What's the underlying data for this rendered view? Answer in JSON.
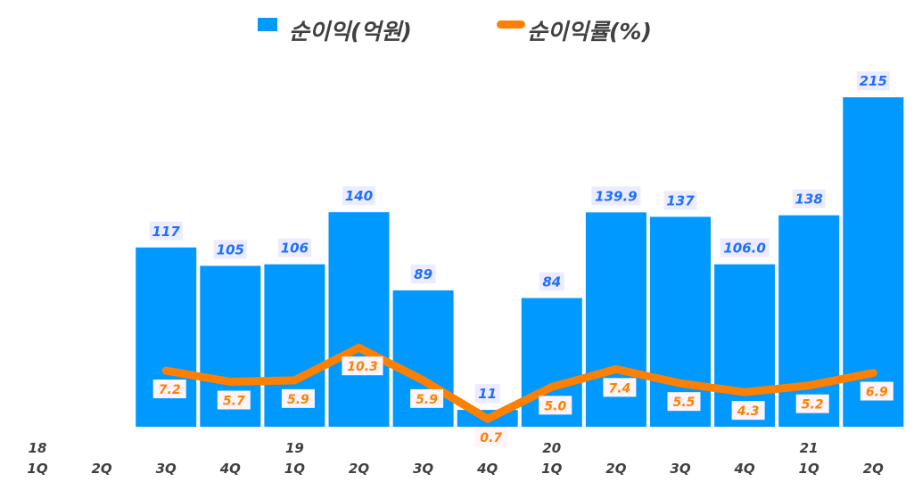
{
  "chart_data": {
    "type": "bar+line",
    "categories": [
      "1Q",
      "2Q",
      "3Q",
      "4Q",
      "1Q",
      "2Q",
      "3Q",
      "4Q",
      "1Q",
      "2Q",
      "3Q",
      "4Q",
      "1Q",
      "2Q"
    ],
    "year_labels": [
      {
        "index": 0,
        "label": "18"
      },
      {
        "index": 4,
        "label": "19"
      },
      {
        "index": 8,
        "label": "20"
      },
      {
        "index": 12,
        "label": "21"
      }
    ],
    "series": [
      {
        "name": "순이익(억원)",
        "type": "bar",
        "color": "#0099FF",
        "values": [
          null,
          null,
          117,
          105,
          106,
          140,
          89,
          11,
          84,
          139.9,
          137,
          106.0,
          138,
          215
        ],
        "labels": [
          "",
          "",
          "117",
          "105",
          "106",
          "140",
          "89",
          "11",
          "84",
          "139.9",
          "137",
          "106.0",
          "138",
          "215"
        ]
      },
      {
        "name": "순이익률(%)",
        "type": "line",
        "color": "#FF7F00",
        "values": [
          null,
          null,
          7.2,
          5.7,
          5.9,
          10.3,
          5.9,
          0.7,
          5.0,
          7.4,
          5.5,
          4.3,
          5.2,
          6.9
        ],
        "labels": [
          "",
          "",
          "7.2",
          "5.7",
          "5.9",
          "10.3",
          "5.9",
          "0.7",
          "5.0",
          "7.4",
          "5.5",
          "4.3",
          "5.2",
          "6.9"
        ]
      }
    ],
    "legend": "top",
    "grid": false
  }
}
